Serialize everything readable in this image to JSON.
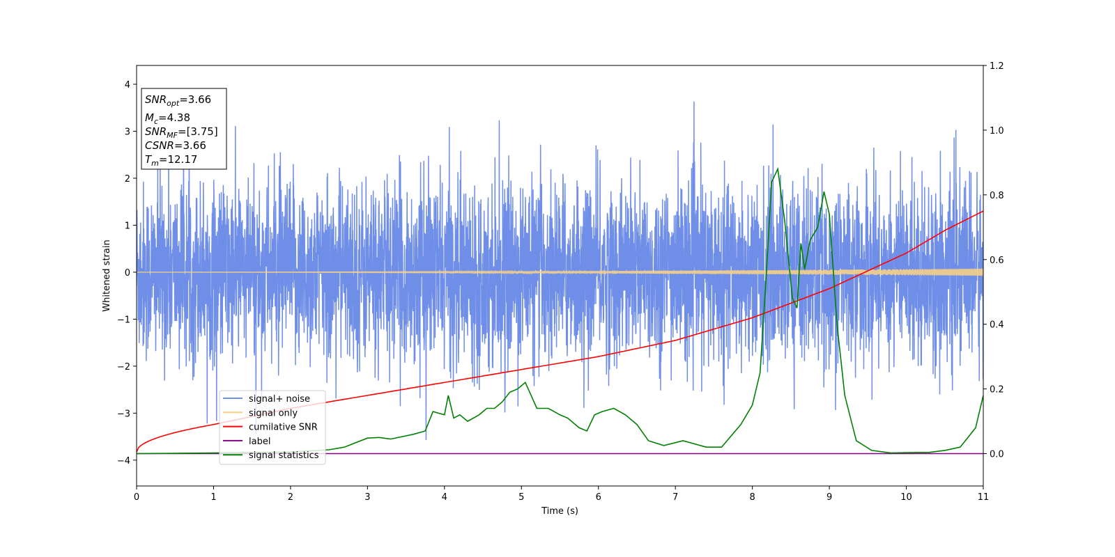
{
  "chart_data": {
    "type": "line",
    "xlabel": "Time (s)",
    "ylabel": "Whitened strain",
    "xlim": [
      0,
      11
    ],
    "ylim_left": [
      -4.55,
      4.4
    ],
    "ylim_right": [
      -0.1,
      1.2
    ],
    "x_ticks": [
      "0",
      "1",
      "2",
      "3",
      "4",
      "5",
      "6",
      "7",
      "8",
      "9",
      "10",
      "11"
    ],
    "y_ticks_left": [
      "4",
      "3",
      "2",
      "1",
      "0",
      "−1",
      "−2",
      "−3",
      "−4"
    ],
    "y_ticks_right": [
      "1.2",
      "1.0",
      "0.8",
      "0.6",
      "0.4",
      "0.2",
      "0.0"
    ],
    "legend_position": "lower-left",
    "annotation": [
      {
        "var": "SNR",
        "sub": "opt",
        "value": "=3.66"
      },
      {
        "var": "M",
        "sub": "c",
        "value": "=4.38"
      },
      {
        "var": "SNR",
        "sub": "MF",
        "value": "=[3.75]"
      },
      {
        "var": "CSNR",
        "sub": "",
        "value": "=3.66"
      },
      {
        "var": "T",
        "sub": "m",
        "value": "=12.17"
      }
    ],
    "series": [
      {
        "name": "signal+ noise",
        "color": "#6f8ee8",
        "axis": "left",
        "kind": "noise",
        "std": 0.95,
        "typical_range": [
          -2.5,
          2.5
        ]
      },
      {
        "name": "signal only",
        "color": "#f5cf87",
        "axis": "left",
        "kind": "chirp",
        "amplitude_start": 0.005,
        "amplitude_end": 0.08
      },
      {
        "name": "cumilative SNR",
        "color": "#ff0000",
        "axis": "right",
        "x": [
          0,
          0.5,
          1,
          2,
          3,
          4,
          5,
          6,
          7,
          8,
          9,
          10,
          10.5,
          11
        ],
        "y": [
          0.005,
          0.06,
          0.09,
          0.14,
          0.18,
          0.22,
          0.26,
          0.3,
          0.35,
          0.42,
          0.51,
          0.62,
          0.69,
          0.75
        ]
      },
      {
        "name": "label",
        "color": "#800080",
        "axis": "right",
        "x": [
          0,
          11
        ],
        "y": [
          0.0,
          0.0
        ]
      },
      {
        "name": "signal statistics",
        "color": "#008000",
        "axis": "right",
        "x": [
          0,
          1.0,
          2.0,
          2.5,
          2.7,
          3.0,
          3.15,
          3.3,
          3.6,
          3.75,
          3.85,
          4.0,
          4.05,
          4.12,
          4.2,
          4.3,
          4.45,
          4.55,
          4.65,
          4.75,
          4.85,
          4.95,
          5.05,
          5.2,
          5.35,
          5.5,
          5.6,
          5.75,
          5.85,
          5.95,
          6.05,
          6.2,
          6.35,
          6.5,
          6.65,
          6.85,
          7.1,
          7.4,
          7.6,
          7.85,
          8.0,
          8.1,
          8.18,
          8.25,
          8.33,
          8.42,
          8.52,
          8.58,
          8.63,
          8.68,
          8.75,
          8.85,
          8.93,
          9.0,
          9.1,
          9.2,
          9.35,
          9.55,
          9.8,
          10.0,
          10.3,
          10.5,
          10.7,
          10.9,
          11.0
        ],
        "y": [
          0.0,
          0.002,
          0.005,
          0.012,
          0.02,
          0.048,
          0.05,
          0.045,
          0.06,
          0.07,
          0.13,
          0.12,
          0.18,
          0.11,
          0.12,
          0.1,
          0.12,
          0.14,
          0.14,
          0.16,
          0.19,
          0.2,
          0.22,
          0.14,
          0.14,
          0.12,
          0.11,
          0.08,
          0.07,
          0.12,
          0.13,
          0.14,
          0.12,
          0.09,
          0.04,
          0.025,
          0.04,
          0.02,
          0.02,
          0.09,
          0.15,
          0.25,
          0.55,
          0.84,
          0.88,
          0.72,
          0.48,
          0.45,
          0.65,
          0.57,
          0.66,
          0.7,
          0.81,
          0.74,
          0.4,
          0.18,
          0.04,
          0.01,
          0.002,
          0.003,
          0.004,
          0.01,
          0.02,
          0.08,
          0.18
        ]
      }
    ]
  }
}
